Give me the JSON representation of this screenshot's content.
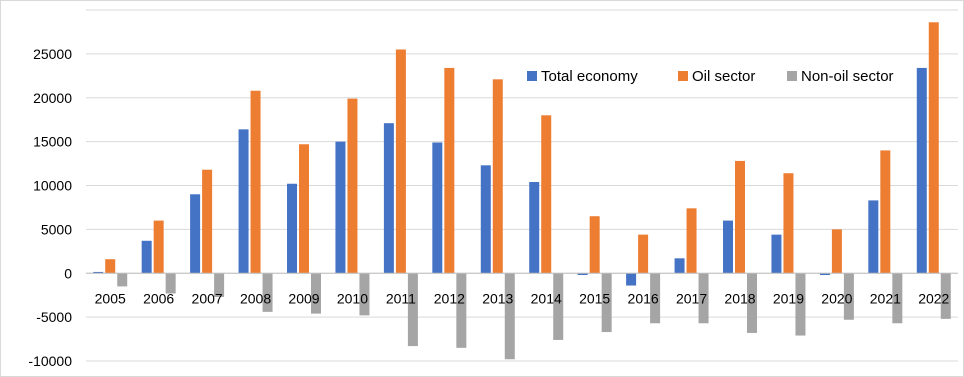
{
  "chart_data": {
    "type": "bar",
    "title": "",
    "xlabel": "",
    "ylabel": "",
    "categories": [
      "2005",
      "2006",
      "2007",
      "2008",
      "2009",
      "2010",
      "2011",
      "2012",
      "2013",
      "2014",
      "2015",
      "2016",
      "2017",
      "2018",
      "2019",
      "2020",
      "2021",
      "2022"
    ],
    "series": [
      {
        "name": "Total economy",
        "color": "#4472c4",
        "values": [
          150,
          3700,
          9000,
          16400,
          10200,
          15000,
          17100,
          14900,
          12300,
          10400,
          -200,
          -1400,
          1700,
          6000,
          4400,
          -200,
          8300,
          23400
        ]
      },
      {
        "name": "Oil sector",
        "color": "#ed7d31",
        "values": [
          1600,
          6000,
          11800,
          20800,
          14700,
          19900,
          25500,
          23400,
          22100,
          18000,
          6500,
          4400,
          7400,
          12800,
          11400,
          5000,
          14000,
          28600
        ]
      },
      {
        "name": "Non-oil sector",
        "color": "#a5a5a5",
        "values": [
          -1500,
          -2300,
          -2700,
          -4400,
          -4600,
          -4800,
          -8300,
          -8500,
          -9800,
          -7600,
          -6700,
          -5700,
          -5700,
          -6800,
          -7100,
          -5300,
          -5700,
          -5200
        ]
      }
    ],
    "ylim": [
      -10000,
      30000
    ],
    "yticks": [
      -10000,
      -5000,
      0,
      5000,
      10000,
      15000,
      20000,
      25000
    ],
    "grid": true,
    "legend_position": "top-right"
  }
}
